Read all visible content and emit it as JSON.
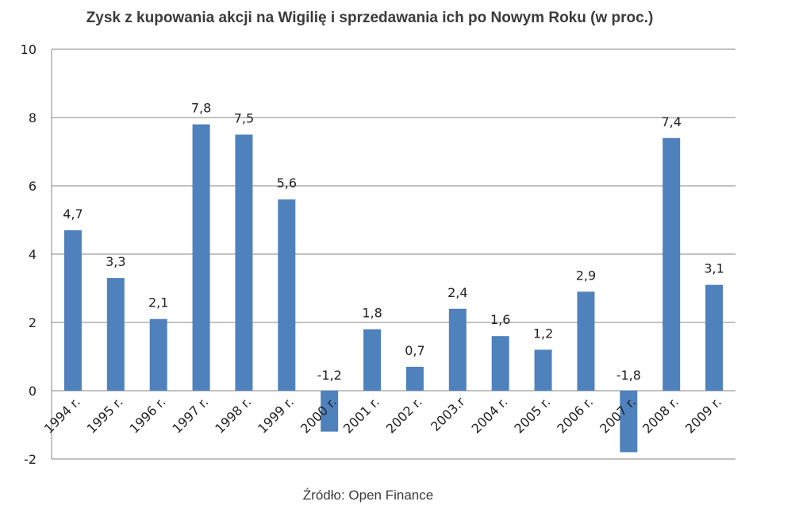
{
  "chart_data": {
    "type": "bar",
    "title": "Zysk z kupowania akcji na Wigilię i sprzedawania ich po Nowym Roku (w proc.)",
    "categories": [
      "1994 r.",
      "1995 r.",
      "1996 r.",
      "1997 r.",
      "1998 r.",
      "1999 r.",
      "2000 r.",
      "2001 r.",
      "2002 r.",
      "2003.r",
      "2004 r.",
      "2005 r.",
      "2006 r.",
      "2007 r.",
      "2008 r.",
      "2009 r."
    ],
    "values": [
      4.7,
      3.3,
      2.1,
      7.8,
      7.5,
      5.6,
      -1.2,
      1.8,
      0.7,
      2.4,
      1.6,
      1.2,
      2.9,
      -1.8,
      7.4,
      3.1
    ],
    "data_labels": [
      "4,7",
      "3,3",
      "2,1",
      "7,8",
      "7,5",
      "5,6",
      "-1,2",
      "1,8",
      "0,7",
      "2,4",
      "1,6",
      "1,2",
      "2,9",
      "-1,8",
      "7,4",
      "3,1"
    ],
    "ylim": [
      -2,
      10
    ],
    "yticks": [
      -2,
      0,
      2,
      4,
      6,
      8,
      10
    ],
    "ytick_labels": [
      "-2",
      "0",
      "2",
      "4",
      "6",
      "8",
      "10"
    ],
    "grid": true,
    "bar_color": "#4f81bd",
    "xlabel": "",
    "ylabel": ""
  },
  "source": "Źródło: Open Finance"
}
